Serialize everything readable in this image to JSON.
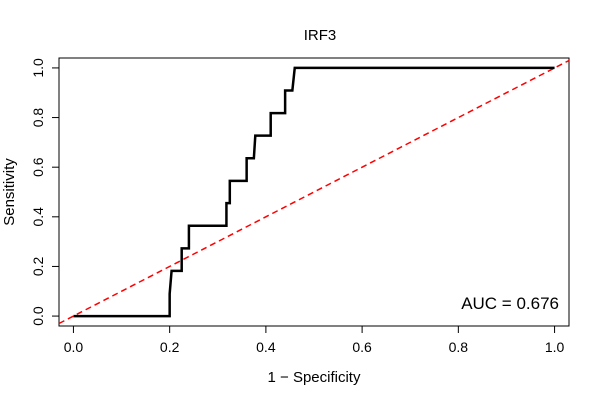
{
  "chart_data": {
    "type": "line",
    "title": "IRF3",
    "xlabel": "1 − Specificity",
    "ylabel": "Sensitivity",
    "xlim": [
      -0.03,
      1.03
    ],
    "ylim": [
      -0.04,
      1.04
    ],
    "xticks": [
      0.0,
      0.2,
      0.4,
      0.6,
      0.8,
      1.0
    ],
    "xtick_labels": [
      "0.0",
      "0.2",
      "0.4",
      "0.6",
      "0.8",
      "1.0"
    ],
    "yticks": [
      0.0,
      0.2,
      0.4,
      0.6,
      0.8,
      1.0
    ],
    "ytick_labels": [
      "0.0",
      "0.2",
      "0.4",
      "0.6",
      "0.8",
      "1.0"
    ],
    "grid": false,
    "annotation": "AUC = 0.676",
    "series": [
      {
        "color": "#000000",
        "style": "solid",
        "points": [
          [
            0.0,
            0.0
          ],
          [
            0.2,
            0.0
          ],
          [
            0.2,
            0.09
          ],
          [
            0.204,
            0.182
          ],
          [
            0.225,
            0.182
          ],
          [
            0.225,
            0.273
          ],
          [
            0.24,
            0.273
          ],
          [
            0.24,
            0.364
          ],
          [
            0.318,
            0.364
          ],
          [
            0.318,
            0.455
          ],
          [
            0.325,
            0.455
          ],
          [
            0.325,
            0.545
          ],
          [
            0.36,
            0.545
          ],
          [
            0.36,
            0.636
          ],
          [
            0.375,
            0.636
          ],
          [
            0.378,
            0.727
          ],
          [
            0.41,
            0.727
          ],
          [
            0.41,
            0.818
          ],
          [
            0.44,
            0.818
          ],
          [
            0.44,
            0.909
          ],
          [
            0.455,
            0.909
          ],
          [
            0.46,
            1.0
          ],
          [
            1.0,
            1.0
          ]
        ]
      },
      {
        "color": "#ff0000",
        "style": "dashed",
        "points": [
          [
            -0.03,
            -0.03
          ],
          [
            1.03,
            1.03
          ]
        ]
      }
    ]
  }
}
